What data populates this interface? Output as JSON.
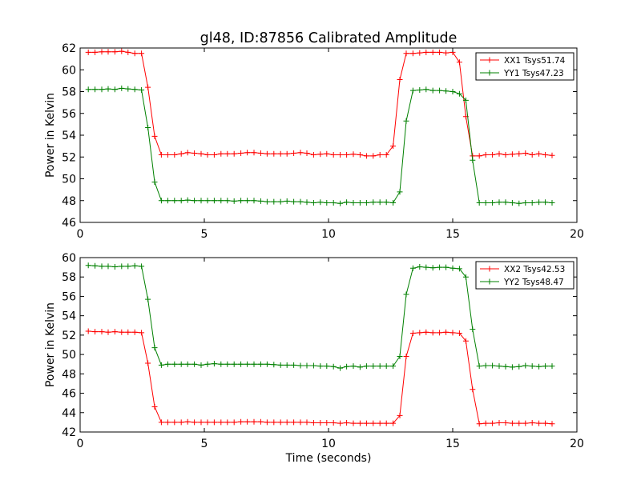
{
  "figure": {
    "title": "gl48, ID:87856 Calibrated Amplitude",
    "xlabel": "Time (seconds)"
  },
  "chart_data": [
    {
      "type": "line",
      "title": "gl48, ID:87856 Calibrated Amplitude",
      "xlabel": "",
      "ylabel": "Power in Kelvin",
      "xlim": [
        0,
        20
      ],
      "ylim": [
        46,
        62
      ],
      "xticks": [
        0,
        5,
        10,
        15,
        20
      ],
      "yticks": [
        46,
        48,
        50,
        52,
        54,
        56,
        58,
        60,
        62
      ],
      "grid": false,
      "legend_position": "top-right",
      "series": [
        {
          "name": "XX1 Tsys51.74",
          "color": "#ff0000",
          "x": [
            0.33,
            0.6,
            0.87,
            1.13,
            1.4,
            1.67,
            1.93,
            2.2,
            2.47,
            2.73,
            3.0,
            3.27,
            3.53,
            3.8,
            4.07,
            4.33,
            4.6,
            4.87,
            5.13,
            5.4,
            5.67,
            5.93,
            6.2,
            6.47,
            6.73,
            7.0,
            7.27,
            7.53,
            7.8,
            8.07,
            8.33,
            8.6,
            8.87,
            9.13,
            9.4,
            9.67,
            9.93,
            10.2,
            10.47,
            10.73,
            11.0,
            11.27,
            11.53,
            11.8,
            12.07,
            12.33,
            12.6,
            12.87,
            13.13,
            13.4,
            13.67,
            13.93,
            14.2,
            14.47,
            14.73,
            15.0,
            15.27,
            15.53,
            15.8,
            16.07,
            16.33,
            16.6,
            16.87,
            17.13,
            17.4,
            17.67,
            17.93,
            18.2,
            18.47,
            18.73,
            19.0
          ],
          "y": [
            61.6,
            61.6,
            61.65,
            61.65,
            61.65,
            61.7,
            61.6,
            61.5,
            61.5,
            58.4,
            53.9,
            52.2,
            52.2,
            52.2,
            52.3,
            52.4,
            52.35,
            52.3,
            52.2,
            52.2,
            52.3,
            52.3,
            52.3,
            52.35,
            52.4,
            52.4,
            52.35,
            52.3,
            52.3,
            52.3,
            52.3,
            52.35,
            52.4,
            52.35,
            52.2,
            52.25,
            52.3,
            52.2,
            52.2,
            52.2,
            52.25,
            52.2,
            52.1,
            52.1,
            52.2,
            52.2,
            53.0,
            59.1,
            61.5,
            61.5,
            61.55,
            61.6,
            61.6,
            61.6,
            61.55,
            61.6,
            60.7,
            55.7,
            52.1,
            52.1,
            52.2,
            52.2,
            52.3,
            52.2,
            52.25,
            52.3,
            52.35,
            52.2,
            52.3,
            52.2,
            52.15
          ]
        },
        {
          "name": "YY1 Tsys47.23",
          "color": "#008000",
          "x": [
            0.33,
            0.6,
            0.87,
            1.13,
            1.4,
            1.67,
            1.93,
            2.2,
            2.47,
            2.73,
            3.0,
            3.27,
            3.53,
            3.8,
            4.07,
            4.33,
            4.6,
            4.87,
            5.13,
            5.4,
            5.67,
            5.93,
            6.2,
            6.47,
            6.73,
            7.0,
            7.27,
            7.53,
            7.8,
            8.07,
            8.33,
            8.6,
            8.87,
            9.13,
            9.4,
            9.67,
            9.93,
            10.2,
            10.47,
            10.73,
            11.0,
            11.27,
            11.53,
            11.8,
            12.07,
            12.33,
            12.6,
            12.87,
            13.13,
            13.4,
            13.67,
            13.93,
            14.2,
            14.47,
            14.73,
            15.0,
            15.27,
            15.53,
            15.8,
            16.07,
            16.33,
            16.6,
            16.87,
            17.13,
            17.4,
            17.67,
            17.93,
            18.2,
            18.47,
            18.73,
            19.0
          ],
          "y": [
            58.2,
            58.2,
            58.2,
            58.25,
            58.2,
            58.3,
            58.25,
            58.2,
            58.15,
            54.7,
            49.7,
            48.0,
            48.0,
            48.0,
            48.0,
            48.05,
            48.0,
            48.0,
            48.0,
            48.0,
            48.0,
            48.0,
            47.95,
            48.0,
            48.0,
            48.0,
            47.95,
            47.9,
            47.9,
            47.9,
            47.95,
            47.9,
            47.9,
            47.85,
            47.8,
            47.85,
            47.8,
            47.8,
            47.75,
            47.85,
            47.8,
            47.8,
            47.8,
            47.85,
            47.85,
            47.85,
            47.8,
            48.8,
            55.3,
            58.1,
            58.15,
            58.2,
            58.1,
            58.1,
            58.05,
            58.0,
            57.8,
            57.2,
            51.7,
            47.8,
            47.8,
            47.8,
            47.85,
            47.85,
            47.8,
            47.75,
            47.8,
            47.8,
            47.85,
            47.85,
            47.8
          ]
        }
      ]
    },
    {
      "type": "line",
      "title": "",
      "xlabel": "Time (seconds)",
      "ylabel": "Power in Kelvin",
      "xlim": [
        0,
        20
      ],
      "ylim": [
        42,
        60
      ],
      "xticks": [
        0,
        5,
        10,
        15,
        20
      ],
      "yticks": [
        42,
        44,
        46,
        48,
        50,
        52,
        54,
        56,
        58,
        60
      ],
      "grid": false,
      "legend_position": "top-right",
      "series": [
        {
          "name": "XX2 Tsys42.53",
          "color": "#ff0000",
          "x": [
            0.33,
            0.6,
            0.87,
            1.13,
            1.4,
            1.67,
            1.93,
            2.2,
            2.47,
            2.73,
            3.0,
            3.27,
            3.53,
            3.8,
            4.07,
            4.33,
            4.6,
            4.87,
            5.13,
            5.4,
            5.67,
            5.93,
            6.2,
            6.47,
            6.73,
            7.0,
            7.27,
            7.53,
            7.8,
            8.07,
            8.33,
            8.6,
            8.87,
            9.13,
            9.4,
            9.67,
            9.93,
            10.2,
            10.47,
            10.73,
            11.0,
            11.27,
            11.53,
            11.8,
            12.07,
            12.33,
            12.6,
            12.87,
            13.13,
            13.4,
            13.67,
            13.93,
            14.2,
            14.47,
            14.73,
            15.0,
            15.27,
            15.53,
            15.8,
            16.07,
            16.33,
            16.6,
            16.87,
            17.13,
            17.4,
            17.67,
            17.93,
            18.2,
            18.47,
            18.73,
            19.0
          ],
          "y": [
            52.4,
            52.35,
            52.35,
            52.3,
            52.35,
            52.3,
            52.3,
            52.3,
            52.25,
            49.1,
            44.6,
            43.0,
            43.0,
            43.0,
            43.0,
            43.05,
            43.0,
            43.0,
            43.0,
            43.0,
            43.0,
            43.0,
            43.0,
            43.05,
            43.05,
            43.05,
            43.05,
            43.0,
            43.0,
            43.0,
            43.0,
            43.0,
            43.0,
            43.0,
            42.95,
            42.95,
            42.95,
            42.95,
            42.9,
            42.95,
            42.9,
            42.9,
            42.9,
            42.9,
            42.9,
            42.9,
            42.9,
            43.7,
            49.8,
            52.2,
            52.25,
            52.3,
            52.25,
            52.25,
            52.3,
            52.25,
            52.2,
            51.4,
            46.4,
            42.85,
            42.9,
            42.9,
            42.95,
            42.95,
            42.9,
            42.9,
            42.9,
            42.95,
            42.9,
            42.9,
            42.85
          ]
        },
        {
          "name": "YY2 Tsys48.47",
          "color": "#008000",
          "x": [
            0.33,
            0.6,
            0.87,
            1.13,
            1.4,
            1.67,
            1.93,
            2.2,
            2.47,
            2.73,
            3.0,
            3.27,
            3.53,
            3.8,
            4.07,
            4.33,
            4.6,
            4.87,
            5.13,
            5.4,
            5.67,
            5.93,
            6.2,
            6.47,
            6.73,
            7.0,
            7.27,
            7.53,
            7.8,
            8.07,
            8.33,
            8.6,
            8.87,
            9.13,
            9.4,
            9.67,
            9.93,
            10.2,
            10.47,
            10.73,
            11.0,
            11.27,
            11.53,
            11.8,
            12.07,
            12.33,
            12.6,
            12.87,
            13.13,
            13.4,
            13.67,
            13.93,
            14.2,
            14.47,
            14.73,
            15.0,
            15.27,
            15.53,
            15.8,
            16.07,
            16.33,
            16.6,
            16.87,
            17.13,
            17.4,
            17.67,
            17.93,
            18.2,
            18.47,
            18.73,
            19.0
          ],
          "y": [
            59.2,
            59.15,
            59.1,
            59.1,
            59.05,
            59.1,
            59.1,
            59.15,
            59.1,
            55.7,
            50.7,
            48.9,
            49.0,
            49.0,
            49.0,
            49.0,
            49.0,
            48.9,
            49.0,
            49.05,
            49.0,
            49.0,
            49.0,
            49.0,
            49.0,
            49.0,
            49.0,
            49.0,
            48.95,
            48.9,
            48.9,
            48.9,
            48.85,
            48.85,
            48.85,
            48.8,
            48.8,
            48.75,
            48.6,
            48.75,
            48.8,
            48.7,
            48.8,
            48.8,
            48.8,
            48.8,
            48.8,
            49.8,
            56.2,
            58.9,
            59.05,
            59.0,
            58.95,
            59.0,
            59.0,
            58.9,
            58.85,
            58.0,
            52.6,
            48.8,
            48.85,
            48.85,
            48.8,
            48.75,
            48.7,
            48.75,
            48.85,
            48.8,
            48.75,
            48.8,
            48.8
          ]
        }
      ]
    }
  ]
}
